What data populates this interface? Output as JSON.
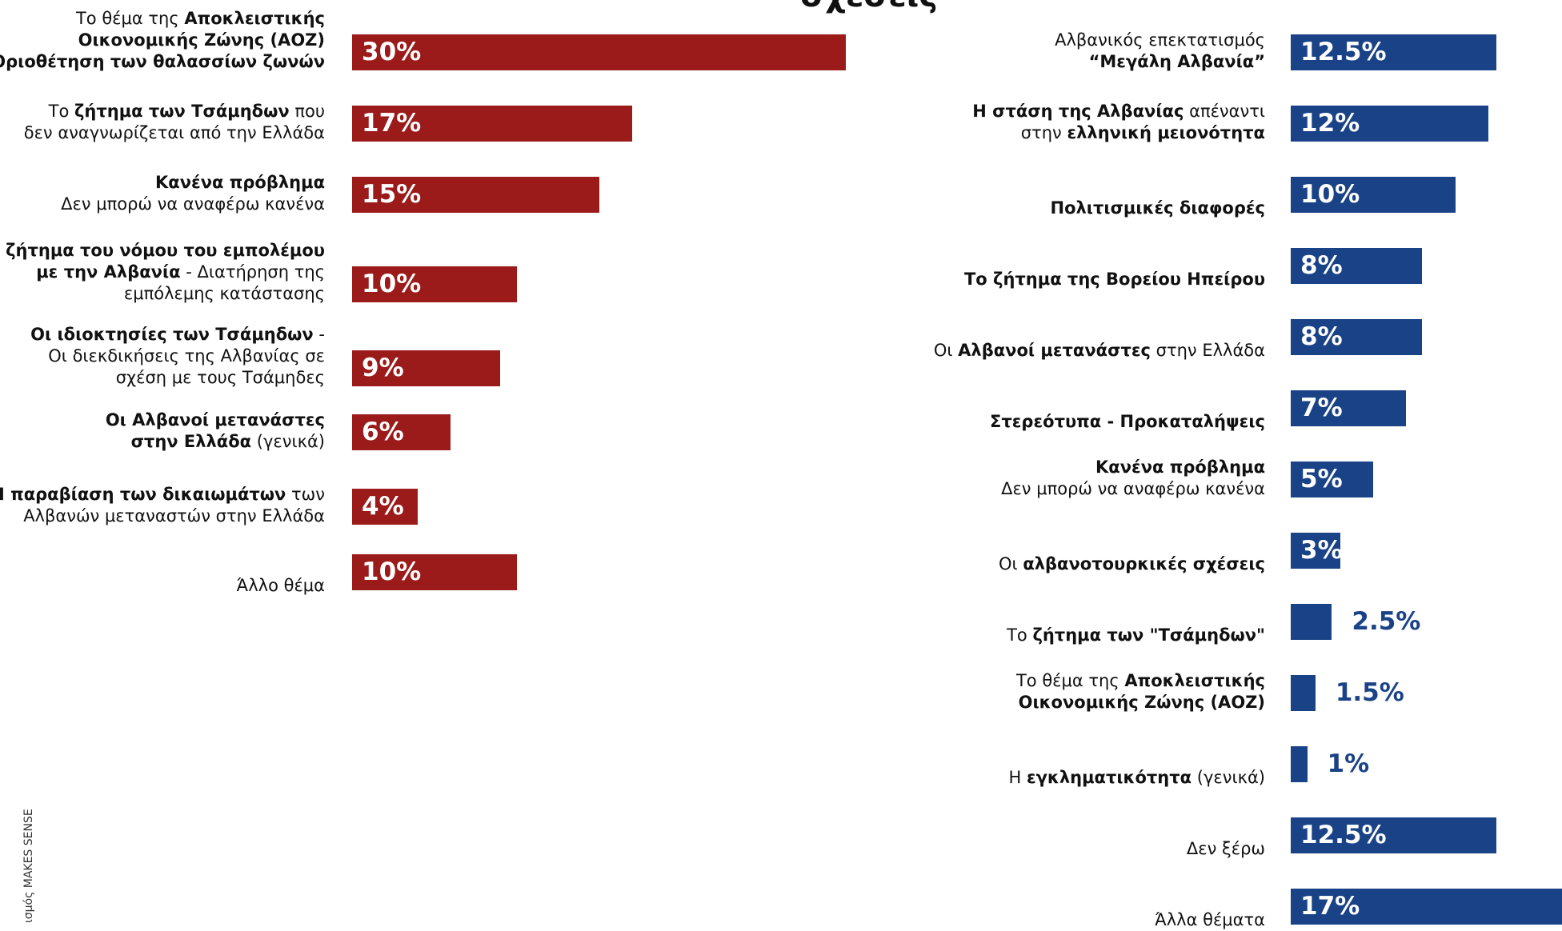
{
  "title_fragment": "σχέσεις",
  "credit": "ισμός MAKES SENSE",
  "colors": {
    "left_bar": "#9b1b1b",
    "right_bar": "#1a4287",
    "right_value_outside": "#1a4287"
  },
  "chart_data": [
    {
      "type": "bar",
      "orientation": "horizontal",
      "xlim": [
        0,
        30
      ],
      "categories": [
        "Το θέμα της Αποκλειστικής Οικονομικής Ζώνης (ΑΟΖ) Οριοθέτηση των θαλασσίων ζωνών",
        "Το ζήτημα των Τσάμηδων που δεν αναγνωρίζεται από την Ελλάδα",
        "Κανένα πρόβλημα Δεν μπορώ να αναφέρω κανένα",
        "Το ζήτημα του νόμου του εμπολέμου με την Αλβανία - Διατήρηση της εμπόλεμης κατάστασης",
        "Οι ιδιοκτησίες των Τσάμηδων - Οι διεκδικήσεις της Αλβανίας σε σχέση με τους Τσάμηδες",
        "Οι Αλβανοί μετανάστες στην Ελλάδα (γενικά)",
        "Η παραβίαση των δικαιωμάτων των Αλβανών μεταναστών στην Ελλάδα",
        "Άλλο θέμα"
      ],
      "label_lines": [
        [
          [
            [
              "Το θέμα της ",
              false
            ],
            [
              "Αποκλειστικής",
              true
            ]
          ],
          [
            [
              "Οικονομικής Ζώνης (ΑΟΖ)",
              true
            ]
          ],
          [
            [
              "Οριοθέτηση των θαλασσίων ζωνών",
              true
            ]
          ]
        ],
        [
          [
            [
              "Το ",
              false
            ],
            [
              "ζήτημα των Τσάμηδων",
              true
            ],
            [
              " που",
              false
            ]
          ],
          [
            [
              "δεν αναγνωρίζεται από την Ελλάδα",
              false
            ]
          ]
        ],
        [
          [
            [
              "Κανένα πρόβλημα",
              true
            ]
          ],
          [
            [
              "Δεν μπορώ να αναφέρω κανένα",
              false
            ]
          ]
        ],
        [
          [
            [
              "Το ζήτημα του νόμου του εμπολέμου",
              true
            ]
          ],
          [
            [
              "με την Αλβανία",
              true
            ],
            [
              " - Διατήρηση της",
              false
            ]
          ],
          [
            [
              "εμπόλεμης κατάστασης",
              false
            ]
          ]
        ],
        [
          [
            [
              "Οι ιδιοκτησίες των Τσάμηδων",
              true
            ],
            [
              " -",
              false
            ]
          ],
          [
            [
              "Οι διεκδικήσεις της Αλβανίας σε",
              false
            ]
          ],
          [
            [
              "σχέση με τους Τσάμηδες",
              false
            ]
          ]
        ],
        [
          [
            [
              "Οι Αλβανοί μετανάστες",
              true
            ]
          ],
          [
            [
              "στην Ελλάδα",
              true
            ],
            [
              " (γενικά)",
              false
            ]
          ]
        ],
        [
          [
            [
              "Η παραβίαση των δικαιωμάτων",
              true
            ],
            [
              " των",
              false
            ]
          ],
          [
            [
              "Αλβανών μεταναστών στην Ελλάδα",
              false
            ]
          ]
        ],
        [
          [
            [
              "Άλλο θέμα",
              false
            ]
          ]
        ]
      ],
      "values": [
        30,
        17,
        15,
        10,
        9,
        6,
        4,
        10
      ],
      "value_labels": [
        "30%",
        "17%",
        "15%",
        "10%",
        "9%",
        "6%",
        "4%",
        "10%"
      ]
    },
    {
      "type": "bar",
      "orientation": "horizontal",
      "xlim": [
        0,
        17
      ],
      "categories": [
        "Αλβανικός επεκτατισμός “Μεγάλη Αλβανία”",
        "Η στάση της Αλβανίας απέναντι στην ελληνική μειονότητα",
        "Πολιτισμικές διαφορές",
        "Το ζήτημα της Βορείου Ηπείρου",
        "Οι Αλβανοί μετανάστες στην Ελλάδα",
        "Στερεότυπα - Προκαταλήψεις",
        "Κανένα πρόβλημα Δεν μπορώ να αναφέρω κανένα",
        "Οι αλβανοτουρκικές σχέσεις",
        "Το ζήτημα των \"Τσάμηδων\"",
        "Το θέμα της Αποκλειστικής Οικονομικής Ζώνης (ΑΟΖ)",
        "Η εγκληματικότητα (γενικά)",
        "Δεν ξέρω",
        "Άλλα θέματα"
      ],
      "label_lines": [
        [
          [
            [
              "Αλβανικός επεκτατισμός",
              false
            ]
          ],
          [
            [
              "“Μεγάλη Αλβανία”",
              true
            ]
          ]
        ],
        [
          [
            [
              "Η στάση της Αλβανίας",
              true
            ],
            [
              " απέναντι",
              false
            ]
          ],
          [
            [
              "στην ",
              false
            ],
            [
              "ελληνική μειονότητα",
              true
            ]
          ]
        ],
        [
          [
            [
              "Πολιτισμικές διαφορές",
              true
            ]
          ]
        ],
        [
          [
            [
              "Το ζήτημα της Βορείου Ηπείρου",
              true
            ]
          ]
        ],
        [
          [
            [
              "Οι ",
              false
            ],
            [
              "Αλβανοί μετανάστες",
              true
            ],
            [
              " στην Ελλάδα",
              false
            ]
          ]
        ],
        [
          [
            [
              "Στερεότυπα - Προκαταλήψεις",
              true
            ]
          ]
        ],
        [
          [
            [
              "Κανένα πρόβλημα",
              true
            ]
          ],
          [
            [
              "Δεν μπορώ να αναφέρω κανένα",
              false
            ]
          ]
        ],
        [
          [
            [
              "Οι ",
              false
            ],
            [
              "αλβανοτουρκικές σχέσεις",
              true
            ]
          ]
        ],
        [
          [
            [
              "Το ",
              false
            ],
            [
              "ζήτημα των \"Τσάμηδων\"",
              true
            ]
          ]
        ],
        [
          [
            [
              "Το θέμα της ",
              false
            ],
            [
              "Αποκλειστικής",
              true
            ]
          ],
          [
            [
              "Οικονομικής Ζώνης (ΑΟΖ)",
              true
            ]
          ]
        ],
        [
          [
            [
              "Η ",
              false
            ],
            [
              "εγκληματικότητα",
              true
            ],
            [
              " (γενικά)",
              false
            ]
          ]
        ],
        [
          [
            [
              "Δεν ξέρω",
              false
            ]
          ]
        ],
        [
          [
            [
              "Άλλα θέματα",
              false
            ]
          ]
        ]
      ],
      "values": [
        12.5,
        12,
        10,
        8,
        8,
        7,
        5,
        3,
        2.5,
        1.5,
        1,
        12.5,
        17
      ],
      "value_labels": [
        "12.5%",
        "12%",
        "10%",
        "8%",
        "8%",
        "7%",
        "5%",
        "3%",
        "2.5%",
        "1.5%",
        "1%",
        "12.5%",
        "17%"
      ]
    }
  ]
}
